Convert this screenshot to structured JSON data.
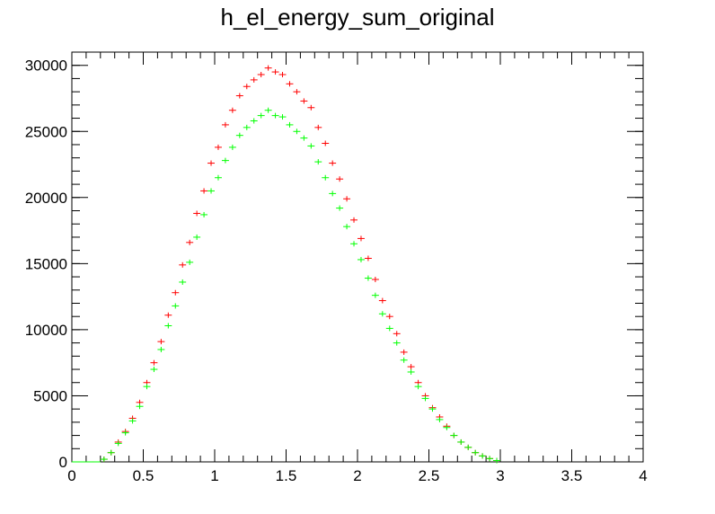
{
  "chart_data": {
    "type": "scatter",
    "title": "h_el_energy_sum_original",
    "xlabel": "",
    "ylabel": "",
    "xlim": [
      0,
      4
    ],
    "ylim": [
      0,
      31000
    ],
    "x_ticks": [
      0,
      0.5,
      1,
      1.5,
      2,
      2.5,
      3,
      3.5,
      4
    ],
    "x_tick_labels": [
      "0",
      "0.5",
      "1",
      "1.5",
      "2",
      "2.5",
      "3",
      "3.5",
      "4"
    ],
    "y_ticks": [
      0,
      5000,
      10000,
      15000,
      20000,
      25000,
      30000
    ],
    "y_tick_labels": [
      "0",
      "5000",
      "10000",
      "15000",
      "20000",
      "25000",
      "30000"
    ],
    "grid": false,
    "legend": "none",
    "bin_width": 0.05,
    "x": [
      0.025,
      0.075,
      0.125,
      0.175,
      0.225,
      0.275,
      0.325,
      0.375,
      0.425,
      0.475,
      0.525,
      0.575,
      0.625,
      0.675,
      0.725,
      0.775,
      0.825,
      0.875,
      0.925,
      0.975,
      1.025,
      1.075,
      1.125,
      1.175,
      1.225,
      1.275,
      1.325,
      1.375,
      1.425,
      1.475,
      1.525,
      1.575,
      1.625,
      1.675,
      1.725,
      1.775,
      1.825,
      1.875,
      1.925,
      1.975,
      2.025,
      2.075,
      2.125,
      2.175,
      2.225,
      2.275,
      2.325,
      2.375,
      2.425,
      2.475,
      2.525,
      2.575,
      2.625,
      2.675,
      2.725,
      2.775,
      2.825,
      2.875,
      2.925,
      2.975
    ],
    "series": [
      {
        "color": "#ff0000",
        "values": [
          0,
          0,
          0,
          0,
          200,
          700,
          1500,
          2300,
          3300,
          4500,
          6000,
          7500,
          9100,
          11100,
          12800,
          14900,
          16600,
          18800,
          20500,
          22600,
          23800,
          25500,
          26600,
          27700,
          28400,
          28900,
          29300,
          29800,
          29500,
          29300,
          28600,
          28000,
          27300,
          26800,
          25300,
          24100,
          22600,
          21400,
          19900,
          18300,
          16900,
          15400,
          13800,
          12200,
          11000,
          9700,
          8300,
          7200,
          6000,
          5000,
          4100,
          3400,
          2700,
          2000,
          1500,
          1100,
          700,
          450,
          250,
          100
        ]
      },
      {
        "color": "#00ff00",
        "values": [
          0,
          0,
          0,
          0,
          200,
          700,
          1400,
          2200,
          3100,
          4200,
          5700,
          7000,
          8500,
          10300,
          11800,
          13600,
          15100,
          17000,
          18700,
          20500,
          21500,
          22800,
          23800,
          24700,
          25300,
          25800,
          26200,
          26600,
          26200,
          26100,
          25500,
          25000,
          24500,
          23900,
          22700,
          21500,
          20300,
          19200,
          17800,
          16500,
          15300,
          13900,
          12600,
          11200,
          10100,
          9000,
          7700,
          6800,
          5700,
          4800,
          4000,
          3200,
          2600,
          2000,
          1500,
          1100,
          700,
          450,
          250,
          100
        ]
      }
    ]
  }
}
